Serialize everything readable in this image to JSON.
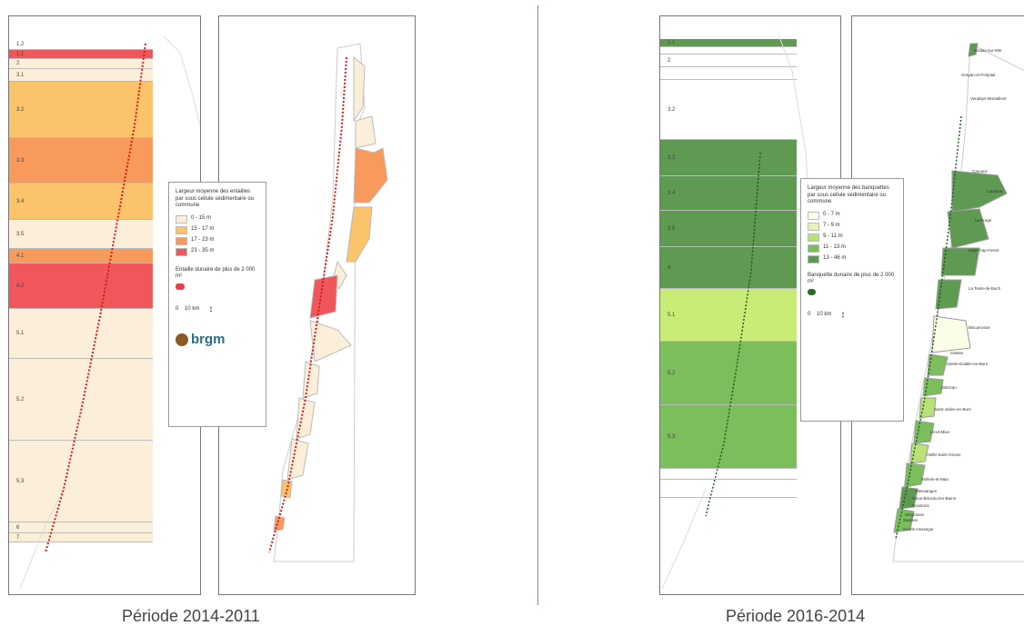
{
  "left": {
    "caption": "Période 2014-2011",
    "bands": [
      {
        "label": "1.2",
        "color": "#ffffff"
      },
      {
        "label": "1.1",
        "color": "#f0575a"
      },
      {
        "label": "2",
        "color": "#fcefd9"
      },
      {
        "label": "3.1",
        "color": "#fcefd9"
      },
      {
        "label": "3.2",
        "color": "#fbc36a"
      },
      {
        "label": "3.3",
        "color": "#f89a5b"
      },
      {
        "label": "3.4",
        "color": "#fbc36a"
      },
      {
        "label": "3.5",
        "color": "#fcefd9"
      },
      {
        "label": "4.1",
        "color": "#f89a5b"
      },
      {
        "label": "4.2",
        "color": "#f0575a"
      },
      {
        "label": "5.1",
        "color": "#fcefd9"
      },
      {
        "label": "5.2",
        "color": "#fcefd9"
      },
      {
        "label": "5.3",
        "color": "#fcefd9"
      },
      {
        "label": "6",
        "color": "#fcefd9"
      },
      {
        "label": "7",
        "color": "#fcefd9"
      }
    ],
    "legend": {
      "title": "Largeur moyenne des entailles par sous cellule sédimentaire ou commune",
      "items": [
        {
          "label": "0 - 15 m",
          "color": "#fcefd9"
        },
        {
          "label": "15 - 17 m",
          "color": "#fbc36a"
        },
        {
          "label": "17 - 23 m",
          "color": "#f89a5b"
        },
        {
          "label": "23 - 35 m",
          "color": "#f0575a"
        }
      ],
      "point_title": "Entaille dunaire de plus de 2 000 m²",
      "point_color": "#e8414a",
      "scale": "0    10 km",
      "logo_text": "brgm"
    }
  },
  "right": {
    "caption": "Période 2016-2014",
    "bands": [
      {
        "label": "1.1",
        "color": "#5e9a52"
      },
      {
        "label": "",
        "color": "#ffffff"
      },
      {
        "label": "2",
        "color": "#ffffff"
      },
      {
        "label": "",
        "color": "#ffffff"
      },
      {
        "label": "3.2",
        "color": "#ffffff"
      },
      {
        "label": "3.3",
        "color": "#5e9a52"
      },
      {
        "label": "3.4",
        "color": "#5e9a52"
      },
      {
        "label": "3.5",
        "color": "#5e9a52"
      },
      {
        "label": "4",
        "color": "#5e9a52"
      },
      {
        "label": "5.1",
        "color": "#c8ec76"
      },
      {
        "label": "5.2",
        "color": "#7cbd5c"
      },
      {
        "label": "5.3",
        "color": "#7cbd5c"
      },
      {
        "label": "",
        "color": "#ffffff"
      },
      {
        "label": "",
        "color": "#ffffff"
      }
    ],
    "legend": {
      "title": "Largeur moyenne des banquettes par sous cellule sédimentaire ou commune",
      "items": [
        {
          "label": "0 - 7 m",
          "color": "#fbfde9"
        },
        {
          "label": "7 - 9 m",
          "color": "#e3f3b4"
        },
        {
          "label": "9 - 11 m",
          "color": "#b9e276"
        },
        {
          "label": "11 - 13 m",
          "color": "#7cbd5c"
        },
        {
          "label": "13 - 46 m",
          "color": "#5e9a52"
        }
      ],
      "point_title": "Banquette dunaire de plus de 2 000 m²",
      "point_color": "#2f6a2a",
      "scale": "0    10 km"
    },
    "communes": [
      "Soulac-sur-Mer",
      "Grayan-et-l'Hôpital",
      "Vendays-Montalivet",
      "Carcans",
      "Lacanau",
      "Le Porge",
      "Lège-Cap-Ferret",
      "La Teste-de-Buch",
      "Biscarrosse",
      "Gastes",
      "Sainte-Eulalie-en-Born",
      "Mimizan",
      "Saint-Julien-en-Born",
      "Lit-et-Mixe",
      "Vielle-Saint-Girons",
      "Moliets-et-Maa",
      "Messanges",
      "Vieux-Boucau-les-Bains",
      "Soustons",
      "Seignosse",
      "Saubion",
      "Soorts-Hossegor"
    ]
  }
}
